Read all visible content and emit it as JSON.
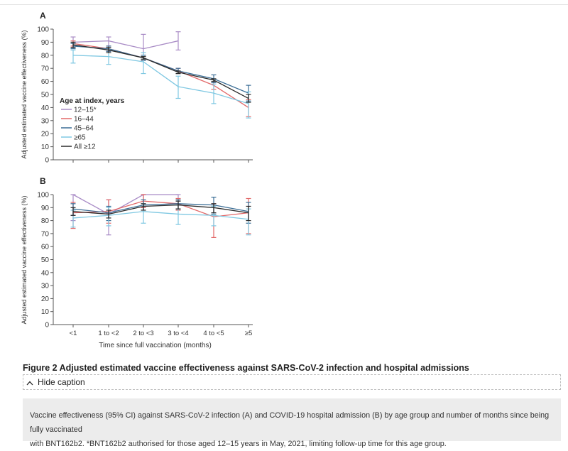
{
  "figure": {
    "title": "Figure 2 Adjusted estimated vaccine effectiveness against SARS-CoV-2 infection and hospital admissions",
    "hide_caption_label": "Hide caption",
    "caption_line1": "Vaccine effectiveness (95% CI) against SARS-CoV-2 infection (A) and COVID-19 hospital admission (B) by age group and number of months since being fully vaccinated",
    "caption_line2": "with BNT162b2. *BNT162b2 authorised for those aged 12–15 years in May, 2021, limiting follow-up time for this age group."
  },
  "chart_data": [
    {
      "type": "line",
      "panel_label": "A",
      "xlabel": "",
      "ylabel": "Adjusted estimated vaccine effectiveness (%)",
      "ylim": [
        0,
        100
      ],
      "yticks": [
        0,
        10,
        20,
        30,
        40,
        50,
        60,
        70,
        80,
        90,
        100
      ],
      "categories": [
        "<1",
        "1 to <2",
        "2 to <3",
        "3 to <4",
        "4 to <5",
        "≥5"
      ],
      "legend_title": "Age at index, years",
      "legend_placement": "left",
      "series": [
        {
          "name": "12–15*",
          "color": "#a98cc6",
          "values": [
            90,
            91,
            85,
            91,
            null,
            null
          ],
          "lower": [
            86,
            87,
            76,
            84,
            null,
            null
          ],
          "upper": [
            94,
            94,
            96,
            98,
            null,
            null
          ]
        },
        {
          "name": "16–44",
          "color": "#e26868",
          "values": [
            89,
            85,
            78,
            68,
            57,
            40
          ],
          "lower": [
            87,
            83,
            76,
            66,
            54,
            33
          ],
          "upper": [
            91,
            87,
            80,
            70,
            60,
            46
          ]
        },
        {
          "name": "45–64",
          "color": "#3b6e96",
          "values": [
            87,
            85,
            78,
            68,
            62,
            51
          ],
          "lower": [
            85,
            83,
            76,
            66,
            59,
            45
          ],
          "upper": [
            89,
            87,
            80,
            70,
            65,
            57
          ]
        },
        {
          "name": "≥65",
          "color": "#7fc8e2",
          "values": [
            80,
            79,
            75,
            56,
            51,
            43
          ],
          "lower": [
            74,
            73,
            66,
            47,
            43,
            32
          ],
          "upper": [
            84,
            84,
            82,
            64,
            58,
            52
          ]
        },
        {
          "name": "All ≥12",
          "color": "#2a2a2a",
          "values": [
            88,
            84,
            78,
            67,
            61,
            47
          ],
          "lower": [
            86,
            82,
            77,
            66,
            60,
            44
          ],
          "upper": [
            90,
            86,
            79,
            68,
            62,
            50
          ]
        }
      ]
    },
    {
      "type": "line",
      "panel_label": "B",
      "xlabel": "Time since full vaccination (months)",
      "ylabel": "Adjusted estimated vaccine effectiveness (%)",
      "ylim": [
        0,
        100
      ],
      "yticks": [
        0,
        10,
        20,
        30,
        40,
        50,
        60,
        70,
        80,
        90,
        100
      ],
      "categories": [
        "<1",
        "1 to <2",
        "2 to <3",
        "3 to <4",
        "4 to <5",
        "≥5"
      ],
      "series": [
        {
          "name": "12–15*",
          "color": "#a98cc6",
          "values": [
            100,
            85,
            100,
            100,
            null,
            null
          ],
          "lower": [
            80,
            69,
            90,
            95,
            null,
            null
          ],
          "upper": [
            100,
            96,
            100,
            100,
            null,
            null
          ]
        },
        {
          "name": "16–44",
          "color": "#e26868",
          "values": [
            86,
            87,
            95,
            93,
            83,
            86
          ],
          "lower": [
            74,
            78,
            90,
            88,
            67,
            70
          ],
          "upper": [
            94,
            96,
            100,
            97,
            93,
            97
          ]
        },
        {
          "name": "45–64",
          "color": "#3b6e96",
          "values": [
            89,
            86,
            92,
            93,
            92,
            87
          ],
          "lower": [
            84,
            80,
            88,
            89,
            85,
            78
          ],
          "upper": [
            93,
            91,
            96,
            96,
            98,
            94
          ]
        },
        {
          "name": "≥65",
          "color": "#7fc8e2",
          "values": [
            82,
            84,
            87,
            85,
            84,
            81
          ],
          "lower": [
            75,
            76,
            78,
            77,
            76,
            69
          ],
          "upper": [
            88,
            90,
            93,
            92,
            91,
            89
          ]
        },
        {
          "name": "All ≥12",
          "color": "#2a2a2a",
          "values": [
            87,
            85,
            91,
            92,
            90,
            86
          ],
          "lower": [
            84,
            82,
            88,
            89,
            86,
            80
          ],
          "upper": [
            90,
            88,
            93,
            95,
            93,
            91
          ]
        }
      ]
    }
  ]
}
